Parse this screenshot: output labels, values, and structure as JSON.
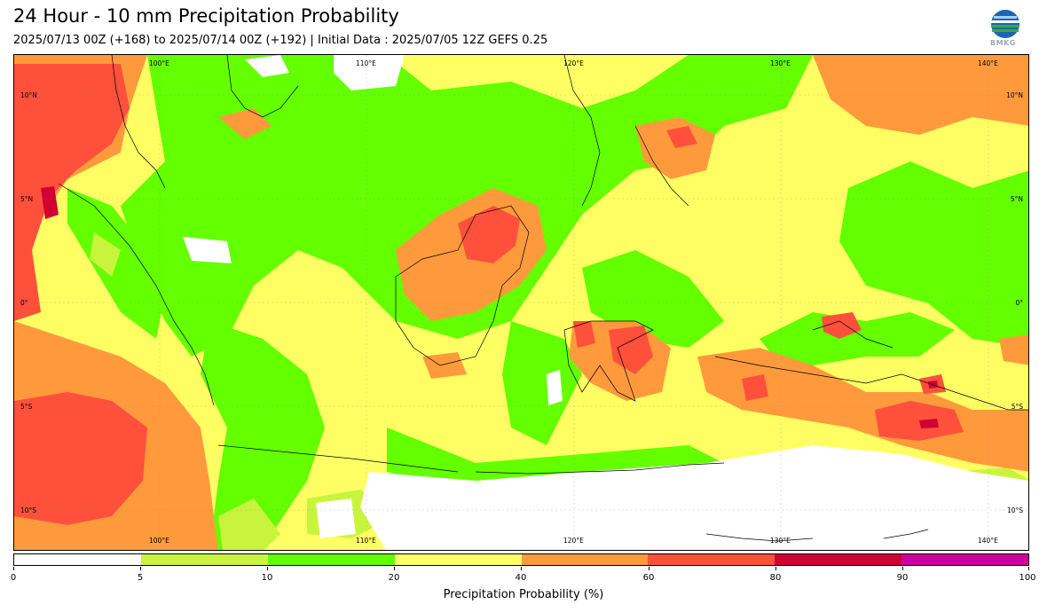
{
  "header": {
    "title": "24 Hour - 10 mm Precipitation Probability",
    "subtitle": "2025/07/13 00Z (+168) to 2025/07/14 00Z (+192) | Initial Data : 2025/07/05 12Z GEFS 0.25",
    "logo_text": "BMKG"
  },
  "map": {
    "lon_top": [
      "100°E",
      "110°E",
      "120°E",
      "130°E",
      "140°E"
    ],
    "lon_bottom": [
      "100°E",
      "110°E",
      "120°E",
      "130°E",
      "140°E"
    ],
    "lat_left": [
      "10°N",
      "5°N",
      "0°",
      "5°S",
      "10°S"
    ],
    "lat_right": [
      "10°N",
      "5°N",
      "0°",
      "5°S",
      "10°S"
    ]
  },
  "colorbar": {
    "label": "Precipitation Probability (%)",
    "ticks": [
      "0",
      "5",
      "10",
      "20",
      "40",
      "60",
      "80",
      "90",
      "100"
    ],
    "colors": [
      "#ffffff",
      "#c8f53c",
      "#64ff00",
      "#ffff64",
      "#ff9a3c",
      "#ff503c",
      "#d20032",
      "#d2009b"
    ]
  }
}
